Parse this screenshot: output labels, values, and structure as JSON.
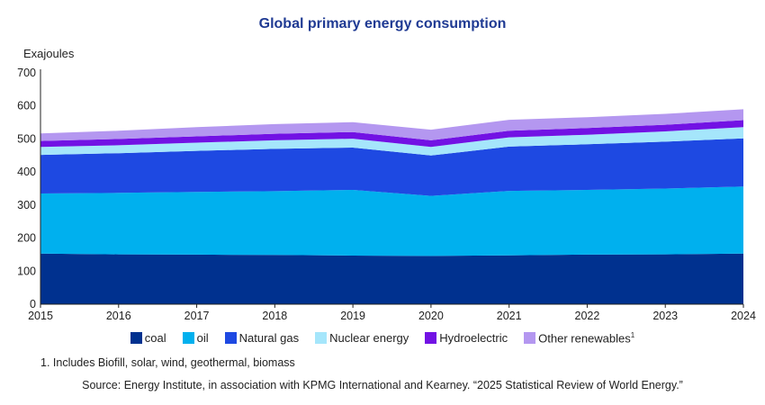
{
  "chart_data": {
    "type": "area",
    "title": "Global primary energy consumption",
    "ylabel": "Exajoules",
    "xlabel": "",
    "x": [
      2015,
      2016,
      2017,
      2018,
      2019,
      2020,
      2021,
      2022,
      2023,
      2024
    ],
    "ylim": [
      0,
      700
    ],
    "yticks": [
      0,
      100,
      200,
      300,
      400,
      500,
      600,
      700
    ],
    "stacked": true,
    "legend_position": "bottom",
    "series": [
      {
        "name": "coal",
        "color": "#00318f",
        "values": [
          153,
          151,
          150,
          149,
          147,
          146,
          148,
          150,
          151,
          153
        ]
      },
      {
        "name": "oil",
        "color": "#00b0ee",
        "values": [
          182,
          186,
          190,
          193,
          199,
          182,
          195,
          196,
          199,
          203
        ]
      },
      {
        "name": "Natural gas",
        "color": "#1e49e2",
        "values": [
          117,
          120,
          124,
          128,
          128,
          122,
          134,
          138,
          142,
          146
        ]
      },
      {
        "name": "Nuclear energy",
        "color": "#a5e6fb",
        "values": [
          24,
          24,
          25,
          26,
          27,
          26,
          28,
          29,
          31,
          34
        ]
      },
      {
        "name": "Hydroelectric",
        "color": "#7212e4",
        "values": [
          18,
          19,
          19,
          20,
          20,
          20,
          20,
          20,
          20,
          21
        ]
      },
      {
        "name": "Other renewables",
        "color": "#b497f0",
        "values": [
          23,
          25,
          28,
          29,
          30,
          32,
          33,
          33,
          33,
          33
        ]
      }
    ],
    "legend_labels": [
      "coal",
      "oil",
      "Natural gas",
      "Nuclear energy",
      "Hydroelectric",
      "Other renewables"
    ],
    "legend_superscript_last": "1"
  },
  "footnote": "1. Includes Biofill, solar, wind, geothermal, biomass",
  "source": "Source: Energy Institute, in association with KPMG International and Kearney. “2025 Statistical Review of World Energy.”"
}
